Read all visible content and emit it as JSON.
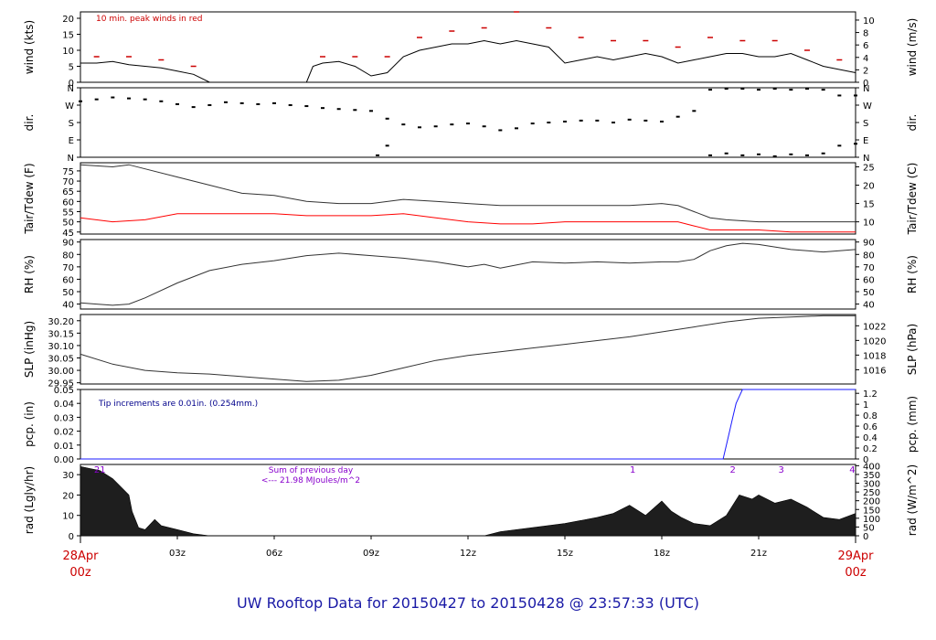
{
  "footer": "UW Rooftop Data for 20150427  to  20150428 @ 23:57:33  (UTC)",
  "colors": {
    "axis": "#000000",
    "wind": "#000000",
    "peak": "#cc0000",
    "dew": "#ff0000",
    "pcp": "#1a1aff",
    "annot_red": "#cc0000",
    "annot_blue": "#00008b",
    "annot_purple": "#8800cc",
    "date": "#cc0000",
    "footer": "#1a1aa6"
  },
  "chart_data": [
    {
      "id": "wind",
      "type": "line",
      "ylabel_left": "wind (kts)",
      "ylabel_right": "wind (m/s)",
      "ylim": [
        0,
        22
      ],
      "yticks_left": [
        "0",
        "5",
        "10",
        "15",
        "20"
      ],
      "yticks_right": [
        "0",
        "2",
        "4",
        "6",
        "8",
        "10"
      ],
      "right_scale": 0.5144,
      "annotation": "10 min. peak winds in red",
      "series": [
        {
          "name": "wind",
          "x": [
            0,
            0.5,
            1,
            1.5,
            2,
            2.5,
            3,
            3.5,
            4,
            4.5,
            5,
            5.5,
            6,
            6.5,
            7,
            7.2,
            7.5,
            8,
            8.5,
            9,
            9.5,
            10,
            10.5,
            11,
            11.5,
            12,
            12.5,
            13,
            13.5,
            14,
            14.5,
            15,
            15.5,
            16,
            16.5,
            17,
            17.5,
            18,
            18.5,
            19,
            19.5,
            20,
            20.5,
            21,
            21.5,
            22,
            22.5,
            23,
            23.5,
            24
          ],
          "y": [
            6,
            6,
            6.5,
            5.5,
            5,
            4.5,
            3.5,
            2.5,
            0,
            0,
            0,
            0,
            0,
            0,
            0,
            5,
            6,
            6.5,
            5,
            2,
            3,
            8,
            10,
            11,
            12,
            12,
            13,
            12,
            13,
            12,
            11,
            6,
            7,
            8,
            7,
            8,
            9,
            8,
            6,
            7,
            8,
            9,
            9,
            8,
            8,
            9,
            7,
            5,
            4,
            3
          ]
        },
        {
          "name": "peak",
          "x": [
            0.5,
            1.5,
            2.5,
            3.5,
            7.5,
            8.5,
            9.5,
            10.5,
            11.5,
            12.5,
            13.5,
            14.5,
            15.5,
            16.5,
            17.5,
            18.5,
            19.5,
            20.5,
            21.5,
            22.5,
            23.5
          ],
          "y": [
            8,
            8,
            7,
            5,
            8,
            8,
            8,
            14,
            16,
            17,
            22,
            17,
            14,
            13,
            13,
            11,
            14,
            13,
            13,
            10,
            7
          ]
        }
      ]
    },
    {
      "id": "dir",
      "type": "scatter",
      "ylabel_left": "dir.",
      "ylabel_right": "dir.",
      "ylim": [
        0,
        360
      ],
      "yticks_left": [
        "N",
        "E",
        "S",
        "W",
        "N"
      ],
      "yticks_right": [
        "N",
        "E",
        "S",
        "W",
        "N"
      ],
      "series": [
        {
          "name": "direction",
          "x": [
            0,
            0.5,
            1,
            1.5,
            2,
            2.5,
            3,
            3.5,
            4,
            4.5,
            5,
            5.5,
            6,
            6.5,
            7,
            7.5,
            8,
            8.5,
            9,
            9.5,
            10,
            10.5,
            11,
            11.5,
            12,
            12.5,
            13,
            13.5,
            14,
            14.5,
            15,
            15.5,
            16,
            16.5,
            17,
            17.5,
            18,
            18.5,
            19,
            19.5,
            20,
            20.5,
            21,
            21.5,
            22,
            22.5,
            23,
            23.5,
            24
          ],
          "y": [
            290,
            300,
            310,
            305,
            300,
            290,
            275,
            260,
            270,
            285,
            280,
            275,
            280,
            270,
            265,
            255,
            250,
            245,
            240,
            200,
            170,
            155,
            160,
            170,
            175,
            160,
            140,
            150,
            175,
            180,
            185,
            190,
            190,
            180,
            195,
            190,
            185,
            210,
            240,
            350,
            355,
            355,
            350,
            355,
            350,
            355,
            350,
            320,
            320
          ]
        },
        {
          "name": "direction2",
          "x": [
            9.2,
            9.5,
            19.5,
            20,
            20.5,
            21,
            21.5,
            22,
            22.5,
            23,
            23.5,
            24
          ],
          "y": [
            10,
            60,
            10,
            20,
            10,
            15,
            5,
            15,
            10,
            20,
            60,
            70
          ]
        }
      ]
    },
    {
      "id": "temp",
      "type": "line",
      "ylabel_left": "Tair/Tdew (F)",
      "ylabel_right": "Tair/Tdew (C)",
      "ylim": [
        44,
        79
      ],
      "yticks_left": [
        "45",
        "50",
        "55",
        "60",
        "65",
        "70",
        "75"
      ],
      "yticks_right": [
        "10",
        "15",
        "20",
        "25"
      ],
      "series": [
        {
          "name": "Tair",
          "x": [
            0,
            1,
            1.5,
            2,
            3,
            4,
            5,
            6,
            7,
            8,
            9,
            10,
            11,
            12,
            13,
            14,
            15,
            16,
            17,
            18,
            18.5,
            19,
            19.5,
            20,
            21,
            22,
            23,
            24
          ],
          "y": [
            78,
            77,
            78,
            76,
            72,
            68,
            64,
            63,
            60,
            59,
            59,
            61,
            60,
            59,
            58,
            58,
            58,
            58,
            58,
            59,
            58,
            55,
            52,
            51,
            50,
            50,
            50,
            50
          ]
        },
        {
          "name": "Tdew",
          "x": [
            0,
            1,
            2,
            3,
            4,
            5,
            6,
            7,
            8,
            9,
            10,
            11,
            12,
            13,
            14,
            15,
            16,
            17,
            18,
            18.5,
            19,
            19.5,
            20,
            21,
            22,
            23,
            24
          ],
          "y": [
            52,
            50,
            51,
            54,
            54,
            54,
            54,
            53,
            53,
            53,
            54,
            52,
            50,
            49,
            49,
            50,
            50,
            50,
            50,
            50,
            48,
            46,
            46,
            46,
            45,
            45,
            45
          ]
        }
      ]
    },
    {
      "id": "rh",
      "type": "line",
      "ylabel_left": "RH (%)",
      "ylabel_right": "RH (%)",
      "ylim": [
        36,
        92
      ],
      "yticks_left": [
        "40",
        "50",
        "60",
        "70",
        "80",
        "90"
      ],
      "yticks_right": [
        "40",
        "50",
        "60",
        "70",
        "80",
        "90"
      ],
      "series": [
        {
          "name": "RH",
          "x": [
            0,
            0.5,
            1,
            1.5,
            2,
            3,
            4,
            5,
            6,
            7,
            8,
            9,
            10,
            11,
            12,
            12.5,
            13,
            14,
            15,
            16,
            17,
            18,
            18.5,
            19,
            19.5,
            20,
            20.5,
            21,
            22,
            23,
            24
          ],
          "y": [
            41,
            40,
            39,
            40,
            45,
            57,
            67,
            72,
            75,
            79,
            81,
            79,
            77,
            74,
            70,
            72,
            69,
            74,
            73,
            74,
            73,
            74,
            74,
            76,
            83,
            87,
            89,
            88,
            84,
            82,
            84
          ]
        }
      ]
    },
    {
      "id": "slp",
      "type": "line",
      "ylabel_left": "SLP (inHg)",
      "ylabel_right": "SLP (hPa)",
      "ylim": [
        29.945,
        30.225
      ],
      "yticks_left": [
        "29.95",
        "30.00",
        "30.05",
        "30.10",
        "30.15",
        "30.20"
      ],
      "yticks_right": [
        "1016",
        "1018",
        "1020",
        "1022"
      ],
      "series": [
        {
          "name": "SLP",
          "x": [
            0,
            1,
            2,
            3,
            4,
            5,
            6,
            7,
            8,
            9,
            10,
            11,
            12,
            13,
            14,
            15,
            16,
            17,
            18,
            19,
            20,
            21,
            22,
            23,
            24
          ],
          "y": [
            30.065,
            30.025,
            30.0,
            29.99,
            29.985,
            29.975,
            29.965,
            29.955,
            29.96,
            29.98,
            30.01,
            30.04,
            30.06,
            30.075,
            30.09,
            30.105,
            30.12,
            30.135,
            30.155,
            30.175,
            30.195,
            30.21,
            30.215,
            30.22,
            30.22
          ]
        }
      ]
    },
    {
      "id": "pcp",
      "type": "line",
      "ylabel_left": "pcp. (in)",
      "ylabel_right": "pcp. (mm)",
      "ylim": [
        0,
        0.05
      ],
      "yticks_left": [
        "0.00",
        "0.01",
        "0.02",
        "0.03",
        "0.04",
        "0.05"
      ],
      "yticks_right": [
        "0",
        "0.2",
        "0.4",
        "0.6",
        "0.8",
        "1",
        "1.2"
      ],
      "right_scale": 25.4,
      "annotation": "Tip increments are 0.01in. (0.254mm.)",
      "series": [
        {
          "name": "pcp",
          "x": [
            0,
            19.9,
            20.0,
            20.1,
            20.2,
            20.3,
            20.4,
            20.5,
            24
          ],
          "y": [
            0,
            0,
            0.01,
            0.02,
            0.03,
            0.04,
            0.045,
            0.05,
            0.05
          ]
        }
      ]
    },
    {
      "id": "rad",
      "type": "area",
      "ylabel_left": "rad (Lgly/hr)",
      "ylabel_right": "rad (W/m^2)",
      "ylim": [
        0,
        35
      ],
      "yticks_left": [
        "0",
        "10",
        "20",
        "30"
      ],
      "yticks_right": [
        "0",
        "50",
        "100",
        "150",
        "200",
        "250",
        "300",
        "350",
        "400"
      ],
      "annotation_1": "Sum of previous day",
      "annotation_2": "<--- 21.98 MJoules/m^2",
      "markers": [
        {
          "x": 0.6,
          "label": "21"
        },
        {
          "x": 17.1,
          "label": "1"
        },
        {
          "x": 20.2,
          "label": "2"
        },
        {
          "x": 21.7,
          "label": "3"
        },
        {
          "x": 23.9,
          "label": "4"
        }
      ],
      "series": [
        {
          "name": "rad",
          "x": [
            0,
            0.3,
            0.6,
            1,
            1.5,
            1.6,
            1.8,
            2,
            2.3,
            2.5,
            3,
            3.5,
            4,
            12.5,
            13,
            14,
            15,
            16,
            16.5,
            17,
            17.5,
            18,
            18.3,
            18.6,
            19,
            19.5,
            20,
            20.4,
            20.8,
            21,
            21.5,
            22,
            22.5,
            23,
            23.5,
            24
          ],
          "y": [
            34,
            33,
            32,
            28,
            20,
            12,
            4,
            3,
            8,
            5,
            3,
            1,
            0,
            0,
            2,
            4,
            6,
            9,
            11,
            15,
            10,
            17,
            12,
            9,
            6,
            5,
            10,
            20,
            18,
            20,
            16,
            18,
            14,
            9,
            8,
            11
          ]
        }
      ]
    }
  ],
  "xaxis": {
    "range": [
      0,
      24
    ],
    "ticks": [
      "03z",
      "06z",
      "09z",
      "12z",
      "15z",
      "18z",
      "21z"
    ],
    "tick_hours": [
      3,
      6,
      9,
      12,
      15,
      18,
      21
    ],
    "start_label": [
      "28Apr",
      "00z"
    ],
    "end_label": [
      "29Apr",
      "00z"
    ]
  }
}
